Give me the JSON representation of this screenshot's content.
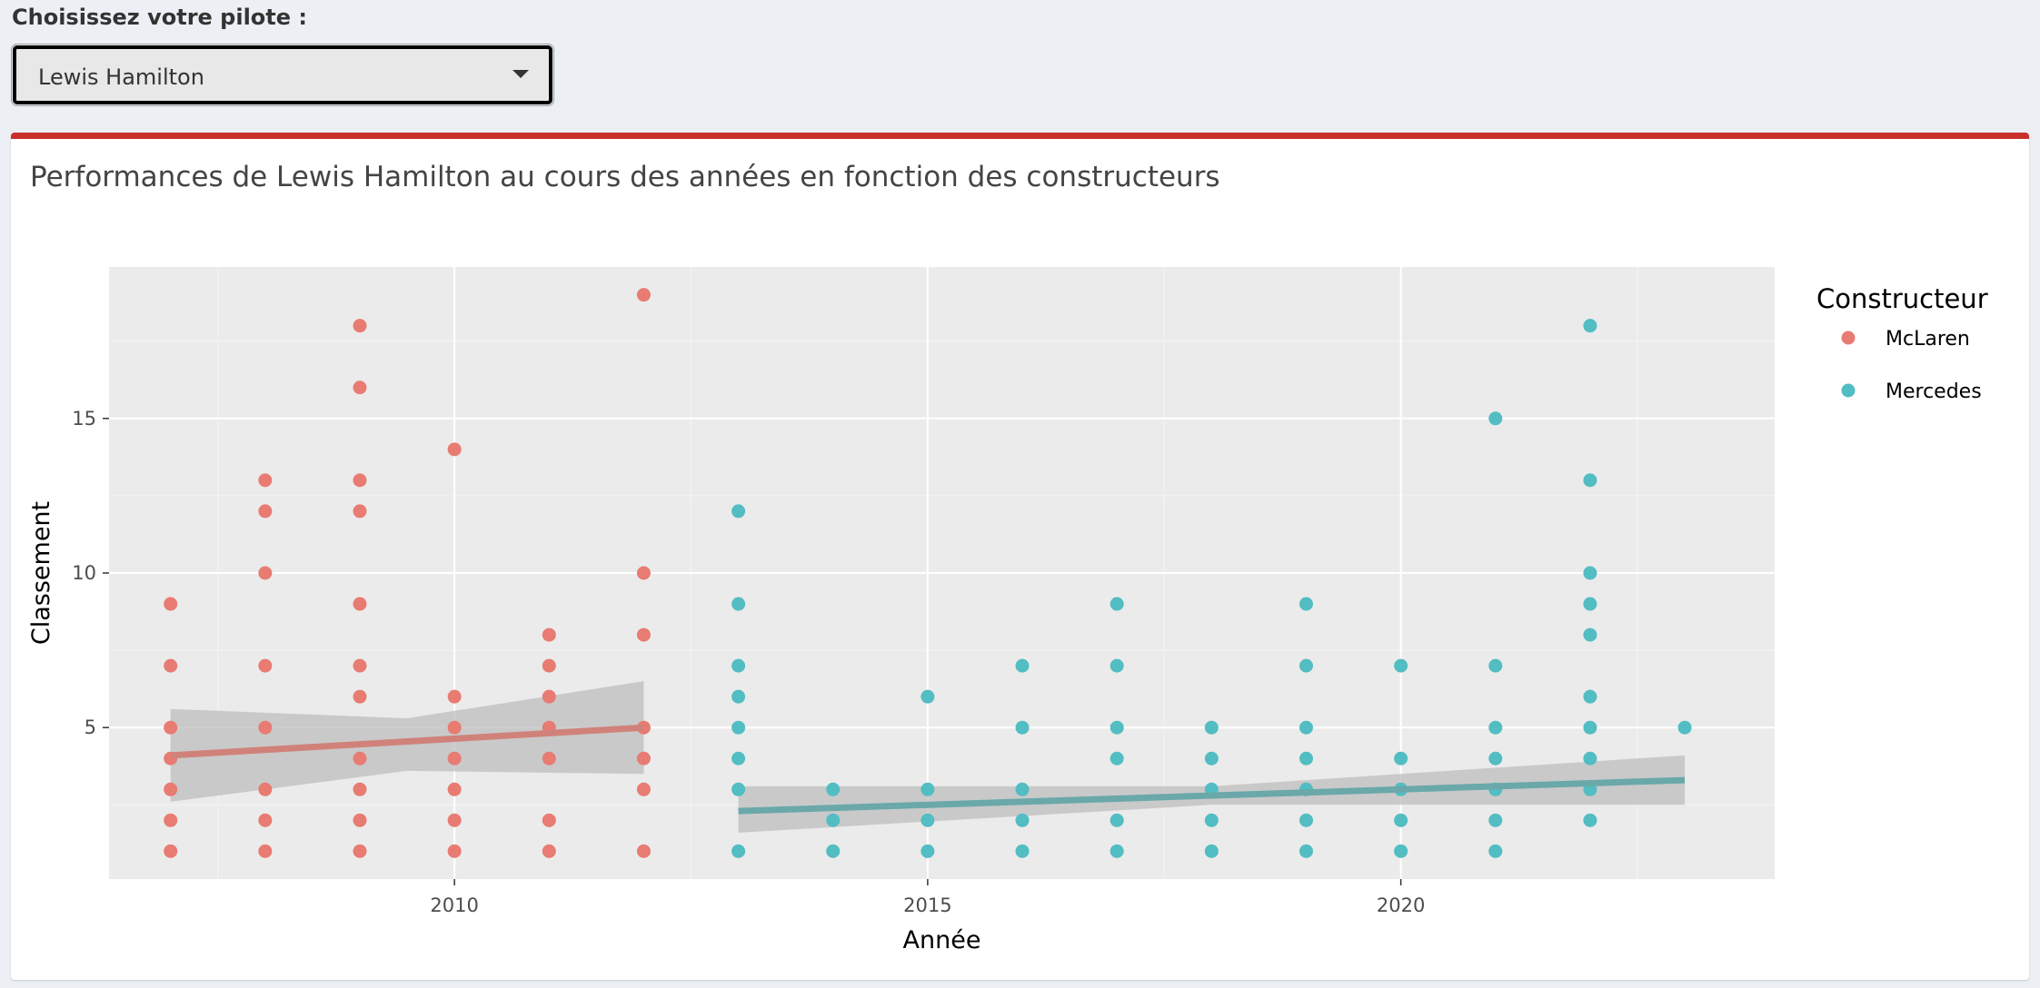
{
  "selector": {
    "label": "Choisissez votre pilote :",
    "value": "Lewis Hamilton"
  },
  "box": {
    "title": "Performances de Lewis Hamilton au cours des années en fonction des constructeurs",
    "accent_color": "#c9302c"
  },
  "chart_data": {
    "type": "scatter",
    "xlabel": "Année",
    "ylabel": "Classement",
    "xlim": [
      2006.35,
      2023.95
    ],
    "ylim": [
      0.1,
      19.9
    ],
    "x_ticks": [
      2010,
      2015,
      2020
    ],
    "y_ticks": [
      5,
      10,
      15
    ],
    "grid": true,
    "legend": {
      "title": "Constructeur",
      "position": "right"
    },
    "series": [
      {
        "name": "McLaren",
        "color": "#e87b72",
        "line_color": "#d0827a",
        "points": [
          [
            2007,
            1
          ],
          [
            2007,
            2
          ],
          [
            2007,
            3
          ],
          [
            2007,
            4
          ],
          [
            2007,
            5
          ],
          [
            2007,
            7
          ],
          [
            2007,
            9
          ],
          [
            2008,
            1
          ],
          [
            2008,
            2
          ],
          [
            2008,
            3
          ],
          [
            2008,
            5
          ],
          [
            2008,
            7
          ],
          [
            2008,
            10
          ],
          [
            2008,
            12
          ],
          [
            2008,
            13
          ],
          [
            2009,
            1
          ],
          [
            2009,
            2
          ],
          [
            2009,
            3
          ],
          [
            2009,
            4
          ],
          [
            2009,
            6
          ],
          [
            2009,
            7
          ],
          [
            2009,
            9
          ],
          [
            2009,
            12
          ],
          [
            2009,
            13
          ],
          [
            2009,
            16
          ],
          [
            2009,
            18
          ],
          [
            2010,
            1
          ],
          [
            2010,
            2
          ],
          [
            2010,
            3
          ],
          [
            2010,
            4
          ],
          [
            2010,
            5
          ],
          [
            2010,
            6
          ],
          [
            2010,
            14
          ],
          [
            2011,
            1
          ],
          [
            2011,
            2
          ],
          [
            2011,
            4
          ],
          [
            2011,
            5
          ],
          [
            2011,
            6
          ],
          [
            2011,
            7
          ],
          [
            2011,
            8
          ],
          [
            2012,
            1
          ],
          [
            2012,
            3
          ],
          [
            2012,
            4
          ],
          [
            2012,
            5
          ],
          [
            2012,
            8
          ],
          [
            2012,
            10
          ],
          [
            2012,
            19
          ]
        ],
        "trend": {
          "x": [
            2007,
            2012
          ],
          "y": [
            4.1,
            5.0
          ]
        },
        "band": {
          "x": [
            2007,
            2009.5,
            2012
          ],
          "upper": [
            5.6,
            5.3,
            6.5
          ],
          "lower": [
            2.6,
            3.6,
            3.5
          ]
        }
      },
      {
        "name": "Mercedes",
        "color": "#52bdc2",
        "line_color": "#6aa8aa",
        "points": [
          [
            2013,
            1
          ],
          [
            2013,
            3
          ],
          [
            2013,
            4
          ],
          [
            2013,
            5
          ],
          [
            2013,
            6
          ],
          [
            2013,
            7
          ],
          [
            2013,
            9
          ],
          [
            2013,
            12
          ],
          [
            2014,
            1
          ],
          [
            2014,
            2
          ],
          [
            2014,
            3
          ],
          [
            2015,
            1
          ],
          [
            2015,
            2
          ],
          [
            2015,
            3
          ],
          [
            2015,
            6
          ],
          [
            2016,
            1
          ],
          [
            2016,
            2
          ],
          [
            2016,
            3
          ],
          [
            2016,
            5
          ],
          [
            2016,
            7
          ],
          [
            2017,
            1
          ],
          [
            2017,
            2
          ],
          [
            2017,
            4
          ],
          [
            2017,
            5
          ],
          [
            2017,
            7
          ],
          [
            2017,
            9
          ],
          [
            2018,
            1
          ],
          [
            2018,
            2
          ],
          [
            2018,
            3
          ],
          [
            2018,
            4
          ],
          [
            2018,
            5
          ],
          [
            2019,
            1
          ],
          [
            2019,
            2
          ],
          [
            2019,
            3
          ],
          [
            2019,
            4
          ],
          [
            2019,
            5
          ],
          [
            2019,
            7
          ],
          [
            2019,
            9
          ],
          [
            2020,
            1
          ],
          [
            2020,
            2
          ],
          [
            2020,
            3
          ],
          [
            2020,
            4
          ],
          [
            2020,
            7
          ],
          [
            2021,
            1
          ],
          [
            2021,
            2
          ],
          [
            2021,
            3
          ],
          [
            2021,
            4
          ],
          [
            2021,
            5
          ],
          [
            2021,
            7
          ],
          [
            2021,
            15
          ],
          [
            2022,
            2
          ],
          [
            2022,
            3
          ],
          [
            2022,
            4
          ],
          [
            2022,
            5
          ],
          [
            2022,
            6
          ],
          [
            2022,
            8
          ],
          [
            2022,
            9
          ],
          [
            2022,
            10
          ],
          [
            2022,
            13
          ],
          [
            2022,
            18
          ],
          [
            2023,
            5
          ]
        ],
        "trend": {
          "x": [
            2013,
            2023
          ],
          "y": [
            2.3,
            3.3
          ]
        },
        "band": {
          "x": [
            2013,
            2018,
            2023
          ],
          "upper": [
            3.1,
            3.1,
            4.1
          ],
          "lower": [
            1.6,
            2.5,
            2.5
          ]
        }
      }
    ]
  }
}
